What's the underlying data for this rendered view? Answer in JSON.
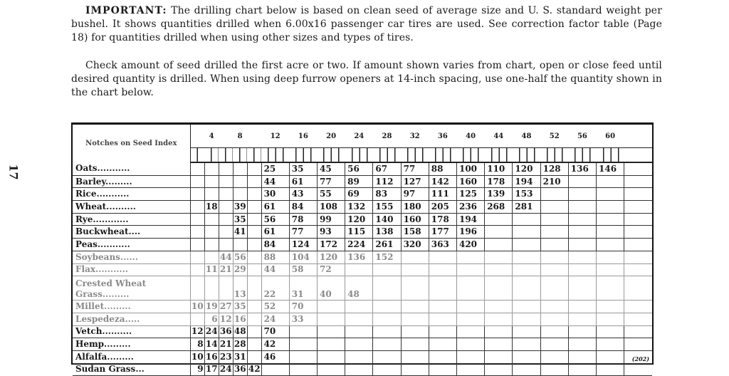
{
  "page_number": "17",
  "paragraphs": {
    "important_label": "IMPORTANT:",
    "p1": "The drilling chart below is based on clean seed of average size and U. S. standard weight per bushel. It shows quantities drilled when 6.00x16 passenger car tires are used. See correction factor table (Page 18) for quantities drilled when using other sizes and types of tires.",
    "p2": "Check amount of seed drilled the first acre or two. If amount shown varies from chart, open or close feed until desired quantity is drilled. When using deep furrow openers at 14-inch spacing, use one-half the quantity shown in the chart below."
  },
  "chart": {
    "header_label": "Notches on Seed Index",
    "column_headers": [
      "",
      "4",
      "",
      "8",
      "",
      "12",
      "16",
      "20",
      "24",
      "28",
      "32",
      "36",
      "40",
      "44",
      "48",
      "52",
      "56",
      "60",
      ""
    ],
    "rows": [
      {
        "name": "Oats...........",
        "grey": false,
        "values": [
          null,
          null,
          null,
          null,
          null,
          25,
          35,
          45,
          56,
          67,
          77,
          88,
          100,
          110,
          120,
          128,
          136,
          146,
          null
        ]
      },
      {
        "name": "Barley.........",
        "grey": false,
        "values": [
          null,
          null,
          null,
          null,
          null,
          44,
          61,
          77,
          89,
          112,
          127,
          142,
          160,
          178,
          194,
          210,
          null,
          null,
          null
        ]
      },
      {
        "name": "Rice...........",
        "grey": false,
        "values": [
          null,
          null,
          null,
          null,
          null,
          30,
          43,
          55,
          69,
          83,
          97,
          111,
          125,
          139,
          153,
          null,
          null,
          null,
          null
        ]
      },
      {
        "name": "Wheat..........",
        "grey": false,
        "values": [
          null,
          18,
          null,
          39,
          null,
          61,
          84,
          108,
          132,
          155,
          180,
          205,
          236,
          268,
          281,
          null,
          null,
          null,
          null
        ]
      },
      {
        "name": "Rye............",
        "grey": false,
        "values": [
          null,
          null,
          null,
          35,
          null,
          56,
          78,
          99,
          120,
          140,
          160,
          178,
          194,
          null,
          null,
          null,
          null,
          null,
          null
        ]
      },
      {
        "name": "Buckwheat....",
        "grey": false,
        "values": [
          null,
          null,
          null,
          41,
          null,
          61,
          77,
          93,
          115,
          138,
          158,
          177,
          196,
          null,
          null,
          null,
          null,
          null,
          null
        ]
      },
      {
        "name": "Peas...........",
        "grey": false,
        "values": [
          null,
          null,
          null,
          null,
          null,
          84,
          124,
          172,
          224,
          261,
          320,
          363,
          420,
          null,
          null,
          null,
          null,
          null,
          null
        ]
      },
      {
        "name": "Soybeans......",
        "grey": true,
        "values": [
          null,
          null,
          44,
          56,
          null,
          88,
          104,
          120,
          136,
          152,
          null,
          null,
          null,
          null,
          null,
          null,
          null,
          null,
          null
        ]
      },
      {
        "name": "Flax...........",
        "grey": true,
        "values": [
          null,
          11,
          21,
          29,
          null,
          44,
          58,
          72,
          null,
          null,
          null,
          null,
          null,
          null,
          null,
          null,
          null,
          null,
          null
        ]
      },
      {
        "name": "Crested Wheat Grass.........",
        "grey": true,
        "tall": true,
        "values": [
          null,
          null,
          null,
          13,
          null,
          22,
          31,
          40,
          48,
          null,
          null,
          null,
          null,
          null,
          null,
          null,
          null,
          null,
          null
        ]
      },
      {
        "name": "Millet.........",
        "grey": true,
        "values": [
          10,
          19,
          27,
          35,
          null,
          52,
          70,
          null,
          null,
          null,
          null,
          null,
          null,
          null,
          null,
          null,
          null,
          null,
          null
        ]
      },
      {
        "name": "Lespedeza.....",
        "grey": true,
        "values": [
          null,
          6,
          12,
          16,
          null,
          24,
          33,
          null,
          null,
          null,
          null,
          null,
          null,
          null,
          null,
          null,
          null,
          null,
          null
        ]
      },
      {
        "name": "Vetch..........",
        "grey": false,
        "values": [
          12,
          24,
          36,
          48,
          null,
          70,
          null,
          null,
          null,
          null,
          null,
          null,
          null,
          null,
          null,
          null,
          null,
          null,
          null
        ]
      },
      {
        "name": "Hemp.........",
        "grey": false,
        "values": [
          8,
          14,
          21,
          28,
          null,
          42,
          null,
          null,
          null,
          null,
          null,
          null,
          null,
          null,
          null,
          null,
          null,
          null,
          null
        ]
      },
      {
        "name": "Alfalfa.........",
        "grey": false,
        "values": [
          10,
          16,
          23,
          31,
          null,
          46,
          null,
          null,
          null,
          null,
          null,
          null,
          null,
          null,
          null,
          null,
          null,
          null,
          null
        ]
      },
      {
        "name": "Sudan Grass...",
        "grey": false,
        "values": [
          9,
          17,
          24,
          36,
          42,
          null,
          null,
          null,
          null,
          null,
          null,
          null,
          null,
          null,
          null,
          null,
          null,
          null,
          null
        ]
      }
    ],
    "footnote": "(202)"
  }
}
